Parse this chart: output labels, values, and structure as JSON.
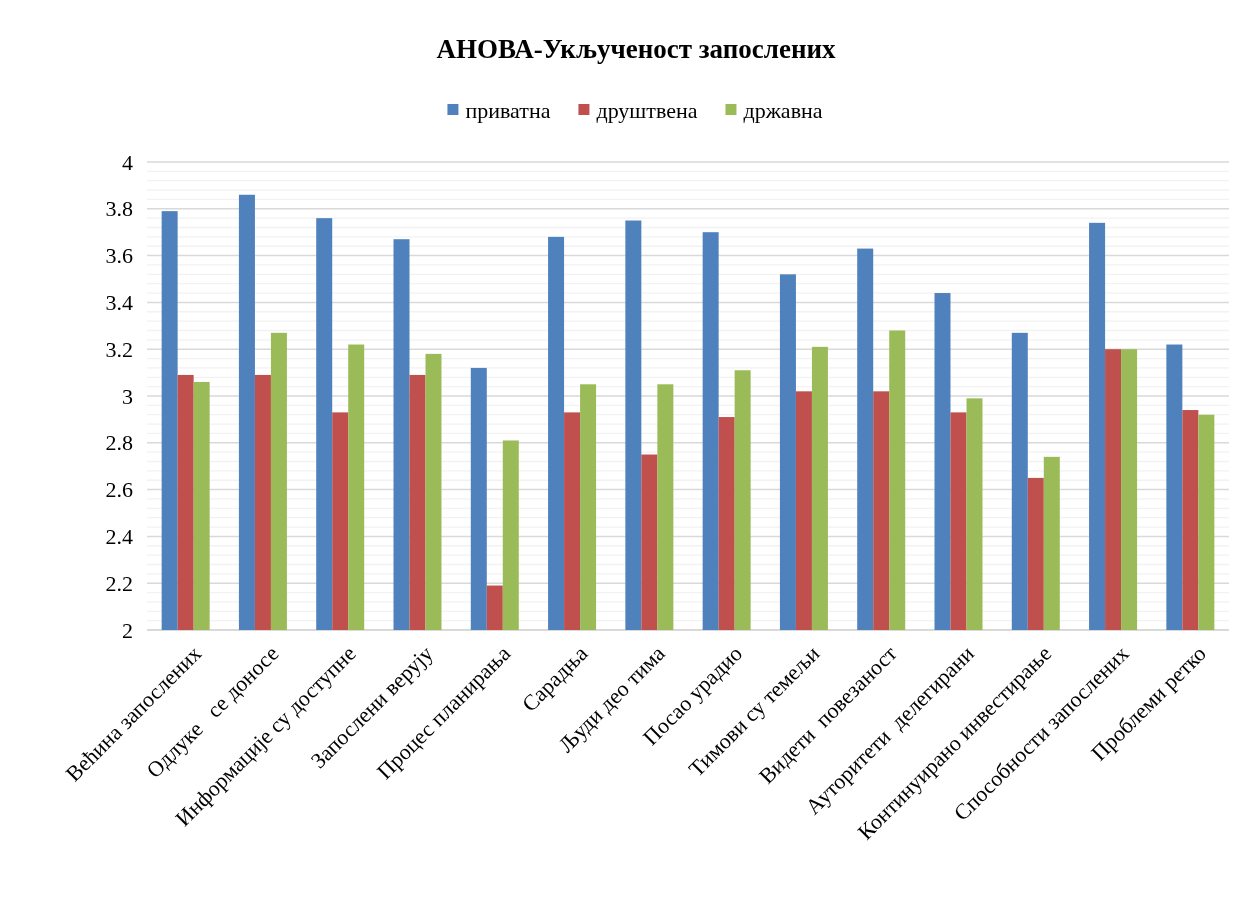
{
  "chart_data": {
    "type": "bar",
    "title": "АНОВА-Укљученост запослених",
    "categories": [
      "Већина запослених",
      "Одлуке   се доносе",
      "Информације су доступне",
      "Запослени верују",
      "Процес планирања",
      "Сарадња",
      "Људи део тима",
      "Посао урадио",
      "Тимови су темељи",
      "Видети  повезаност",
      "Ауторитети  делегирани",
      "Континуирано инвестирање",
      "Способности запослених",
      "Проблеми ретко"
    ],
    "series": [
      {
        "name": "приватна",
        "color": "#4f81bd",
        "values": [
          3.79,
          3.86,
          3.76,
          3.67,
          3.12,
          3.68,
          3.75,
          3.7,
          3.52,
          3.63,
          3.44,
          3.27,
          3.74,
          3.22
        ]
      },
      {
        "name": "друштвена",
        "color": "#c0504d",
        "values": [
          3.09,
          3.09,
          2.93,
          3.09,
          2.19,
          2.93,
          2.75,
          2.91,
          3.02,
          3.02,
          2.93,
          2.65,
          3.2,
          2.94
        ]
      },
      {
        "name": "државна",
        "color": "#9bbb59",
        "values": [
          3.06,
          3.27,
          3.22,
          3.18,
          2.81,
          3.05,
          3.05,
          3.11,
          3.21,
          3.28,
          2.99,
          2.74,
          3.2,
          2.92
        ]
      }
    ],
    "ylim": [
      2,
      4
    ],
    "yticks": [
      2,
      2.2,
      2.4,
      2.6,
      2.8,
      3,
      3.2,
      3.4,
      3.6,
      3.8,
      4
    ],
    "grid": "y",
    "legend": "top"
  }
}
